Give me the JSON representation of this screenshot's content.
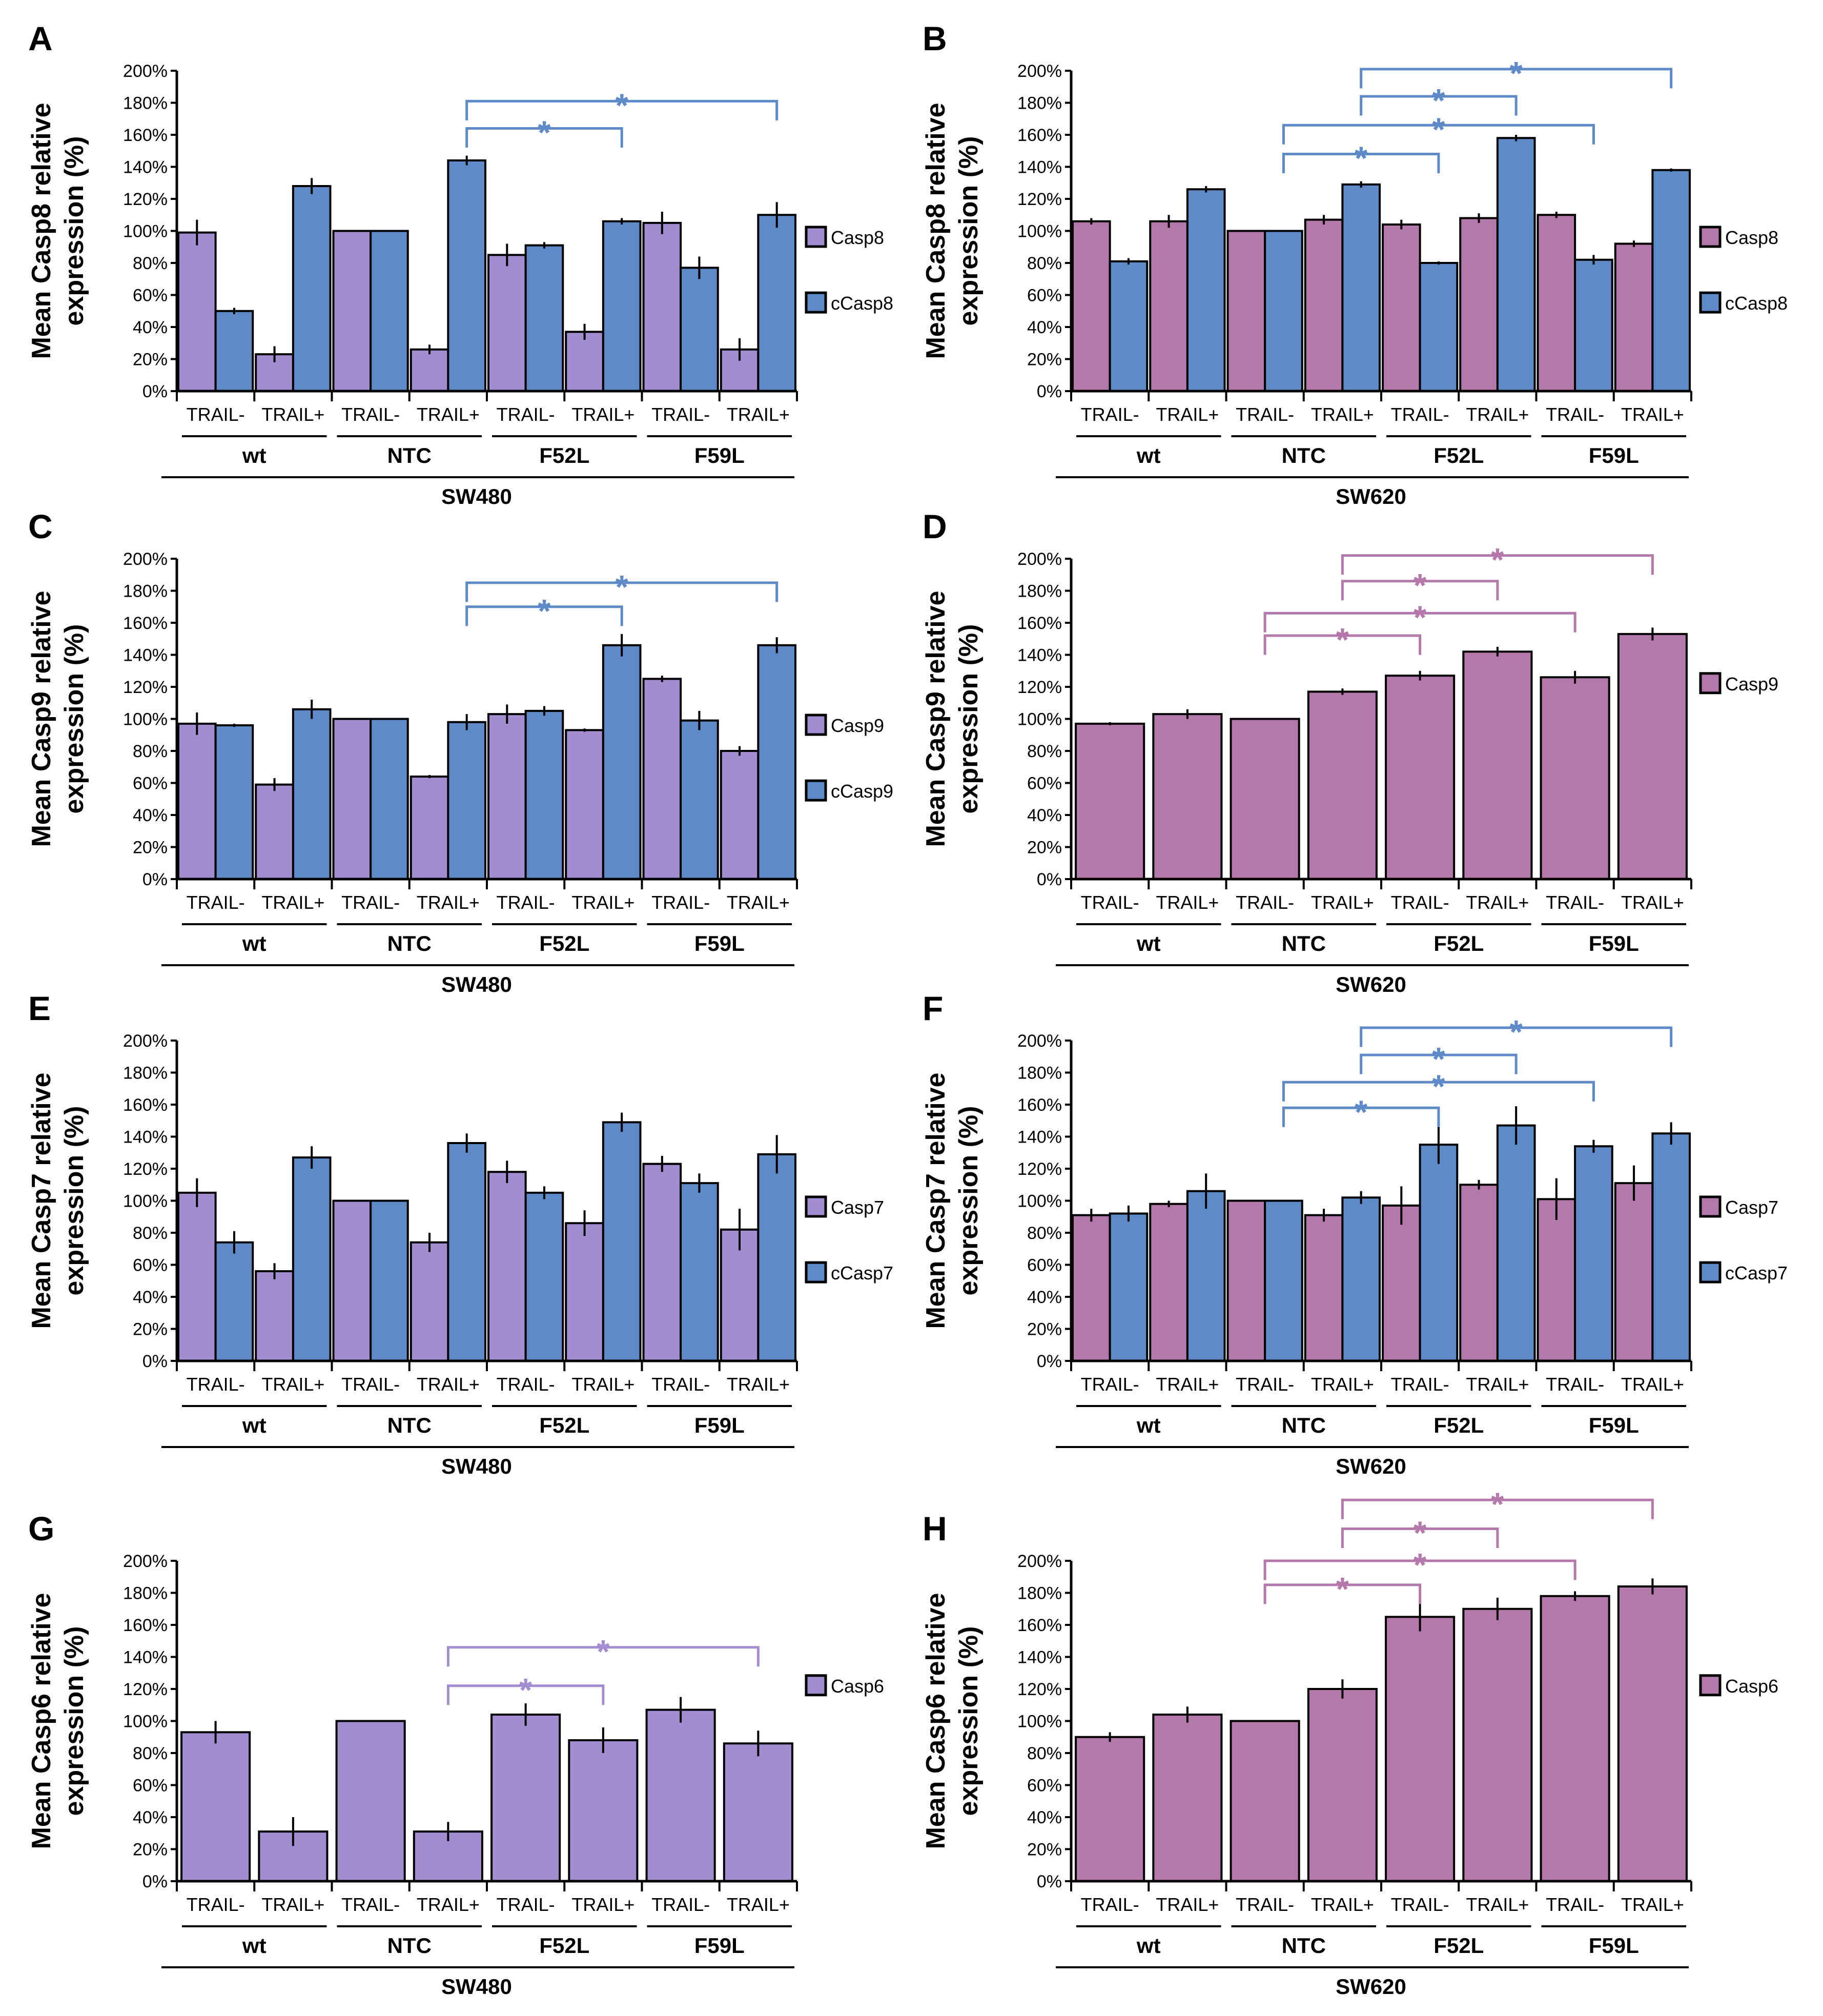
{
  "common": {
    "yticks": [
      "0%",
      "20%",
      "40%",
      "60%",
      "80%",
      "100%",
      "120%",
      "140%",
      "160%",
      "180%",
      "200%"
    ],
    "ylim": [
      0,
      200
    ],
    "groups": [
      "wt",
      "NTC",
      "F52L",
      "F59L"
    ],
    "conditions": [
      "TRAIL-",
      "TRAIL+",
      "TRAIL-",
      "TRAIL+",
      "TRAIL-",
      "TRAIL+",
      "TRAIL-",
      "TRAIL+"
    ],
    "significance_mark": "*"
  },
  "chart_data": [
    {
      "type": "bar",
      "label": "A",
      "ylabel": [
        "Mean Casp8 relative",
        "expression (%)"
      ],
      "cell_line": "SW480",
      "series": [
        {
          "name": "Casp8",
          "color": "#A38DD0",
          "values": [
            99,
            23,
            100,
            26,
            85,
            37,
            105,
            26
          ],
          "errors": [
            8,
            5,
            0,
            3,
            7,
            5,
            7,
            7
          ]
        },
        {
          "name": "cCasp8",
          "color": "#5F8AC8",
          "values": [
            50,
            128,
            100,
            144,
            91,
            106,
            77,
            110
          ],
          "errors": [
            2,
            5,
            0,
            3,
            2,
            2,
            7,
            8
          ]
        }
      ],
      "brackets": [
        {
          "series": 1,
          "from": 3,
          "to": 5,
          "y": 164
        },
        {
          "series": 1,
          "from": 3,
          "to": 7,
          "y": 181
        }
      ]
    },
    {
      "type": "bar",
      "label": "B",
      "ylabel": [
        "Mean Casp8 relative",
        "expression (%)"
      ],
      "cell_line": "SW620",
      "series": [
        {
          "name": "Casp8",
          "color": "#B478AA",
          "values": [
            106,
            106,
            100,
            107,
            104,
            108,
            110,
            92
          ],
          "errors": [
            2,
            4,
            0,
            3,
            3,
            3,
            2,
            2
          ]
        },
        {
          "name": "cCasp8",
          "color": "#5F8AC8",
          "values": [
            81,
            126,
            100,
            129,
            80,
            158,
            82,
            138
          ],
          "errors": [
            2,
            2,
            0,
            2,
            1,
            2,
            3,
            1
          ]
        }
      ],
      "brackets": [
        {
          "series": 1,
          "from": 2,
          "to": 4,
          "y": 148
        },
        {
          "series": 1,
          "from": 2,
          "to": 6,
          "y": 166
        },
        {
          "series": 1,
          "from": 3,
          "to": 5,
          "y": 184
        },
        {
          "series": 1,
          "from": 3,
          "to": 7,
          "y": 201
        }
      ]
    },
    {
      "type": "bar",
      "label": "C",
      "ylabel": [
        "Mean Casp9 relative",
        "expression (%)"
      ],
      "cell_line": "SW480",
      "series": [
        {
          "name": "Casp9",
          "color": "#A38DD0",
          "values": [
            97,
            59,
            100,
            64,
            103,
            93,
            125,
            80
          ],
          "errors": [
            7,
            4,
            0,
            1,
            6,
            1,
            2,
            3
          ]
        },
        {
          "name": "cCasp9",
          "color": "#5F8AC8",
          "values": [
            96,
            106,
            100,
            98,
            105,
            146,
            99,
            146
          ],
          "errors": [
            1,
            6,
            0,
            5,
            3,
            7,
            6,
            5
          ]
        }
      ],
      "brackets": [
        {
          "series": 1,
          "from": 3,
          "to": 5,
          "y": 170
        },
        {
          "series": 1,
          "from": 3,
          "to": 7,
          "y": 185
        }
      ]
    },
    {
      "type": "bar",
      "label": "D",
      "ylabel": [
        "Mean Casp9 relative",
        "expression (%)"
      ],
      "cell_line": "SW620",
      "series": [
        {
          "name": "Casp9",
          "color": "#B478AA",
          "values": [
            97,
            103,
            100,
            117,
            127,
            142,
            126,
            153
          ],
          "errors": [
            1,
            3,
            0,
            2,
            3,
            3,
            4,
            4
          ]
        }
      ],
      "brackets": [
        {
          "series": 0,
          "from": 2,
          "to": 4,
          "y": 152
        },
        {
          "series": 0,
          "from": 2,
          "to": 6,
          "y": 166
        },
        {
          "series": 0,
          "from": 3,
          "to": 5,
          "y": 186
        },
        {
          "series": 0,
          "from": 3,
          "to": 7,
          "y": 202
        }
      ]
    },
    {
      "type": "bar",
      "label": "E",
      "ylabel": [
        "Mean Casp7 relative",
        "expression (%)"
      ],
      "cell_line": "SW480",
      "series": [
        {
          "name": "Casp7",
          "color": "#A38DD0",
          "values": [
            105,
            56,
            100,
            74,
            118,
            86,
            123,
            82
          ],
          "errors": [
            9,
            5,
            0,
            6,
            7,
            8,
            5,
            13
          ]
        },
        {
          "name": "cCasp7",
          "color": "#5F8AC8",
          "values": [
            74,
            127,
            100,
            136,
            105,
            149,
            111,
            129
          ],
          "errors": [
            7,
            7,
            0,
            6,
            4,
            6,
            6,
            12
          ]
        }
      ],
      "brackets": []
    },
    {
      "type": "bar",
      "label": "F",
      "ylabel": [
        "Mean Casp7 relative",
        "expression (%)"
      ],
      "cell_line": "SW620",
      "series": [
        {
          "name": "Casp7",
          "color": "#B478AA",
          "values": [
            91,
            98,
            100,
            91,
            97,
            110,
            101,
            111
          ],
          "errors": [
            4,
            2,
            0,
            4,
            12,
            3,
            13,
            11
          ]
        },
        {
          "name": "cCasp7",
          "color": "#5F8AC8",
          "values": [
            92,
            106,
            100,
            102,
            135,
            147,
            134,
            142
          ],
          "errors": [
            5,
            11,
            0,
            4,
            12,
            12,
            4,
            7
          ]
        }
      ],
      "brackets": [
        {
          "series": 1,
          "from": 2,
          "to": 4,
          "y": 158
        },
        {
          "series": 1,
          "from": 2,
          "to": 6,
          "y": 174
        },
        {
          "series": 1,
          "from": 3,
          "to": 5,
          "y": 191
        },
        {
          "series": 1,
          "from": 3,
          "to": 7,
          "y": 208
        }
      ]
    },
    {
      "type": "bar",
      "label": "G",
      "ylabel": [
        "Mean Casp6 relative",
        "expression (%)"
      ],
      "cell_line": "SW480",
      "series": [
        {
          "name": "Casp6",
          "color": "#A38DD0",
          "values": [
            93,
            31,
            100,
            31,
            104,
            88,
            107,
            86
          ],
          "errors": [
            7,
            9,
            0,
            6,
            7,
            8,
            8,
            8
          ]
        }
      ],
      "brackets": [
        {
          "series": 0,
          "from": 3,
          "to": 5,
          "y": 122
        },
        {
          "series": 0,
          "from": 3,
          "to": 7,
          "y": 146
        }
      ]
    },
    {
      "type": "bar",
      "label": "H",
      "ylabel": [
        "Mean Casp6 relative",
        "expression (%)"
      ],
      "cell_line": "SW620",
      "series": [
        {
          "name": "Casp6",
          "color": "#B478AA",
          "values": [
            90,
            104,
            100,
            120,
            165,
            170,
            178,
            184
          ],
          "errors": [
            3,
            5,
            0,
            6,
            9,
            7,
            3,
            5
          ]
        }
      ],
      "brackets": [
        {
          "series": 0,
          "from": 2,
          "to": 4,
          "y": 185
        },
        {
          "series": 0,
          "from": 2,
          "to": 6,
          "y": 200
        },
        {
          "series": 0,
          "from": 3,
          "to": 5,
          "y": 220
        },
        {
          "series": 0,
          "from": 3,
          "to": 7,
          "y": 238
        }
      ]
    }
  ]
}
